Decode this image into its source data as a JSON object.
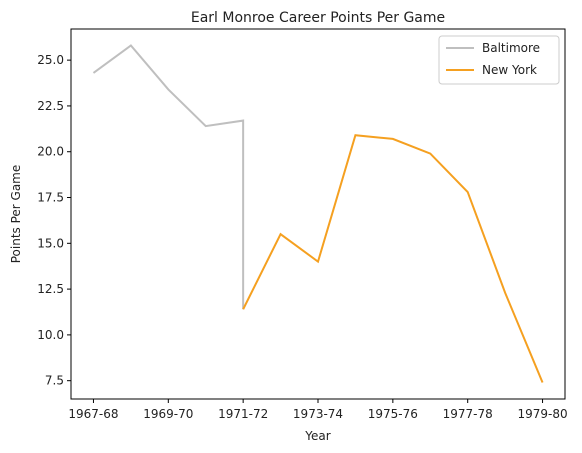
{
  "chart_data": {
    "type": "line",
    "title": "Earl Monroe Career Points Per Game",
    "xlabel": "Year",
    "ylabel": "Points Per Game",
    "x_tick_labels": [
      "1967-68",
      "1969-70",
      "1971-72",
      "1973-74",
      "1975-76",
      "1977-78",
      "1979-80"
    ],
    "x_tick_positions": [
      0,
      2,
      4,
      6,
      8,
      10,
      12
    ],
    "xlim": [
      -0.6,
      12.6
    ],
    "ylim": [
      6.5,
      26.7
    ],
    "y_ticks": [
      7.5,
      10.0,
      12.5,
      15.0,
      17.5,
      20.0,
      22.5,
      25.0
    ],
    "y_tick_labels": [
      "7.5",
      "10.0",
      "12.5",
      "15.0",
      "17.5",
      "20.0",
      "22.5",
      "25.0"
    ],
    "grid": false,
    "legend_position": "top-right",
    "series": [
      {
        "name": "Baltimore",
        "color": "#bfbfbf",
        "points": [
          [
            0,
            24.3
          ],
          [
            1,
            25.8
          ],
          [
            2,
            23.4
          ],
          [
            3,
            21.4
          ],
          [
            4,
            21.7
          ],
          [
            4,
            11.4
          ]
        ]
      },
      {
        "name": "New York",
        "color": "#f5a020",
        "points": [
          [
            4,
            11.4
          ],
          [
            5,
            15.5
          ],
          [
            6,
            14.0
          ],
          [
            7,
            20.9
          ],
          [
            8,
            20.7
          ],
          [
            9,
            19.9
          ],
          [
            10,
            17.8
          ],
          [
            11,
            12.3
          ],
          [
            12,
            7.4
          ]
        ]
      }
    ]
  }
}
